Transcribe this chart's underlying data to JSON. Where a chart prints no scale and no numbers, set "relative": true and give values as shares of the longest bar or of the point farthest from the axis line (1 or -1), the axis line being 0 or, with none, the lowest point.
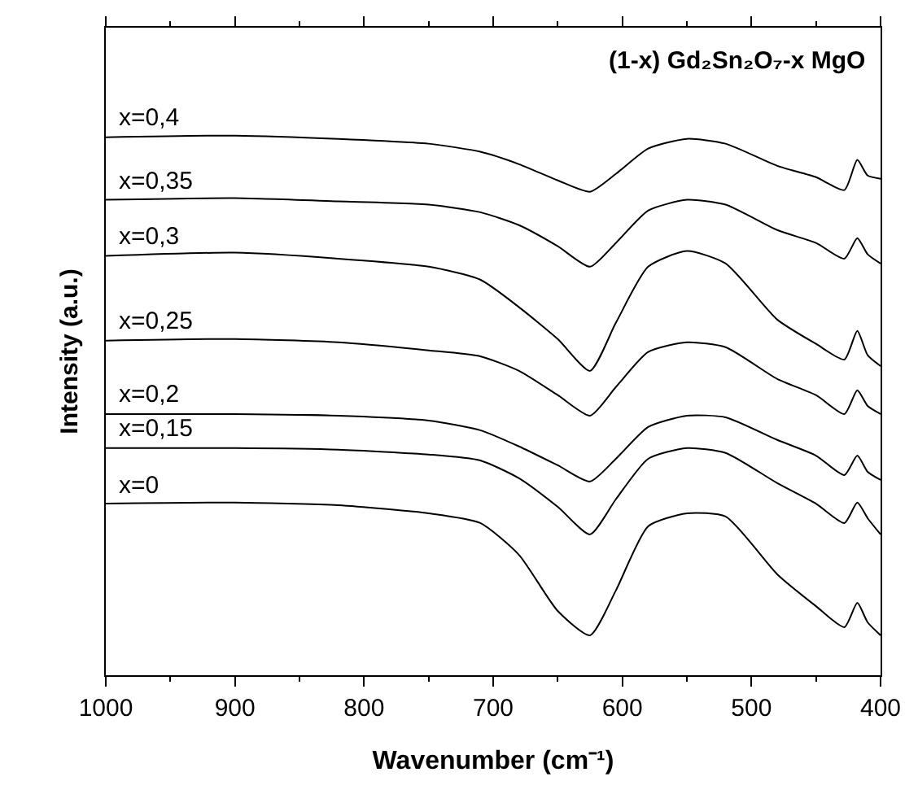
{
  "chart_data": {
    "type": "line",
    "relative": true,
    "title": "(1-x) Gd₂Sn₂O₇-x MgO",
    "xlabel": "Wavenumber (cm⁻¹)",
    "ylabel": "Intensity (a.u.)",
    "x": [
      1000,
      900,
      820,
      750,
      710,
      680,
      650,
      625,
      605,
      580,
      550,
      520,
      480,
      450,
      428,
      418,
      410,
      400
    ],
    "xlim": [
      1000,
      400
    ],
    "xticks": [
      1000,
      {
        "value": 950,
        "label": null
      },
      900,
      {
        "value": 850,
        "label": null
      },
      800,
      {
        "value": 750,
        "label": null
      },
      700,
      {
        "value": 650,
        "label": null
      },
      600,
      {
        "value": 550,
        "label": null
      },
      500,
      {
        "value": 450,
        "label": null
      },
      400
    ],
    "tick_labels": "x",
    "legend": false,
    "marker": "none",
    "line_style": "solid",
    "series": [
      {
        "name": "x=0,4",
        "color": "#000000",
        "values": [
          0.997,
          1.0,
          0.994,
          0.985,
          0.97,
          0.947,
          0.917,
          0.896,
          0.929,
          0.976,
          0.994,
          0.985,
          0.944,
          0.923,
          0.899,
          0.955,
          0.926,
          0.92
        ]
      },
      {
        "name": "x=0,35",
        "color": "#000000",
        "values": [
          0.881,
          0.884,
          0.878,
          0.872,
          0.858,
          0.834,
          0.795,
          0.757,
          0.801,
          0.861,
          0.881,
          0.872,
          0.825,
          0.801,
          0.772,
          0.81,
          0.78,
          0.763
        ]
      },
      {
        "name": "x=0,3",
        "color": "#000000",
        "values": [
          0.777,
          0.783,
          0.772,
          0.757,
          0.733,
          0.682,
          0.623,
          0.564,
          0.653,
          0.757,
          0.786,
          0.763,
          0.659,
          0.614,
          0.585,
          0.638,
          0.593,
          0.573
        ]
      },
      {
        "name": "x=0,25",
        "color": "#000000",
        "values": [
          0.62,
          0.623,
          0.617,
          0.602,
          0.591,
          0.564,
          0.519,
          0.481,
          0.534,
          0.599,
          0.617,
          0.608,
          0.549,
          0.519,
          0.484,
          0.528,
          0.499,
          0.484
        ]
      },
      {
        "name": "x=0,2",
        "color": "#000000",
        "values": [
          0.484,
          0.484,
          0.481,
          0.472,
          0.454,
          0.424,
          0.389,
          0.359,
          0.401,
          0.46,
          0.481,
          0.478,
          0.436,
          0.407,
          0.371,
          0.407,
          0.377,
          0.362
        ]
      },
      {
        "name": "x=0,15",
        "color": "#000000",
        "values": [
          0.421,
          0.421,
          0.418,
          0.409,
          0.398,
          0.365,
          0.312,
          0.261,
          0.326,
          0.401,
          0.421,
          0.412,
          0.356,
          0.318,
          0.282,
          0.32,
          0.291,
          0.261
        ]
      },
      {
        "name": "x=0",
        "color": "#000000",
        "values": [
          0.318,
          0.32,
          0.315,
          0.3,
          0.282,
          0.223,
          0.119,
          0.074,
          0.157,
          0.276,
          0.3,
          0.294,
          0.187,
          0.128,
          0.089,
          0.134,
          0.098,
          0.074
        ]
      }
    ]
  }
}
